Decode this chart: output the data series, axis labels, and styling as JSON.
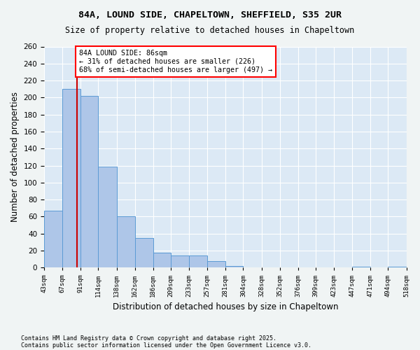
{
  "title1": "84A, LOUND SIDE, CHAPELTOWN, SHEFFIELD, S35 2UR",
  "title2": "Size of property relative to detached houses in Chapeltown",
  "xlabel": "Distribution of detached houses by size in Chapeltown",
  "ylabel": "Number of detached properties",
  "bar_color": "#aec6e8",
  "bar_edge_color": "#5b9bd5",
  "bg_color": "#dce9f5",
  "grid_color": "#ffffff",
  "property_line_color": "#cc0000",
  "property_value": 86,
  "annotation_text": "84A LOUND SIDE: 86sqm\n← 31% of detached houses are smaller (226)\n68% of semi-detached houses are larger (497) →",
  "footnote1": "Contains HM Land Registry data © Crown copyright and database right 2025.",
  "footnote2": "Contains public sector information licensed under the Open Government Licence v3.0.",
  "bins": [
    43,
    67,
    91,
    114,
    138,
    162,
    186,
    209,
    233,
    257,
    281,
    304,
    328,
    352,
    376,
    399,
    423,
    447,
    471,
    494,
    518
  ],
  "bin_labels": [
    "43sqm",
    "67sqm",
    "91sqm",
    "114sqm",
    "138sqm",
    "162sqm",
    "186sqm",
    "209sqm",
    "233sqm",
    "257sqm",
    "281sqm",
    "304sqm",
    "328sqm",
    "352sqm",
    "376sqm",
    "399sqm",
    "423sqm",
    "447sqm",
    "471sqm",
    "494sqm",
    "518sqm"
  ],
  "counts": [
    67,
    210,
    202,
    119,
    60,
    35,
    18,
    14,
    14,
    8,
    2,
    0,
    0,
    0,
    0,
    0,
    0,
    1,
    0,
    1
  ],
  "ylim": [
    0,
    260
  ],
  "yticks": [
    0,
    20,
    40,
    60,
    80,
    100,
    120,
    140,
    160,
    180,
    200,
    220,
    240,
    260
  ]
}
